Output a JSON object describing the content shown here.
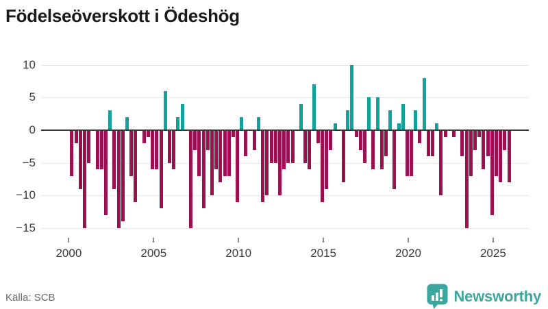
{
  "title": "Födelseöverskott i Ödeshög",
  "footer": {
    "source": "Källa: SCB",
    "brand_name": "Newsworthy"
  },
  "colors": {
    "positive_bar": "#12a19b",
    "negative_bar": "#9c104f",
    "grid": "#e8e8e8",
    "zero_line": "#3a3a3a",
    "axis_text": "#3c3c3c",
    "brand_teal": "#3ba69e"
  },
  "chart_data": {
    "type": "bar",
    "title": "Födelseöverskott i Ödeshög",
    "frequency": "quarterly",
    "xlabel": "",
    "ylabel": "",
    "x_tick_labels": [
      "2000",
      "2005",
      "2010",
      "2015",
      "2020",
      "2025"
    ],
    "y_tick_labels": [
      "10",
      "5",
      "0",
      "−5",
      "−10",
      "−15"
    ],
    "y_ticks": [
      10,
      5,
      0,
      -5,
      -10,
      -15
    ],
    "ylim": [
      -16.5,
      11
    ],
    "grid": true,
    "legend": "none",
    "series": [
      {
        "name": "Födelseöverskott",
        "years": [
          {
            "year": 2000,
            "quarters": [
              -7,
              -2,
              -9,
              -15
            ]
          },
          {
            "year": 2001,
            "quarters": [
              -5,
              0,
              -6,
              -6
            ]
          },
          {
            "year": 2002,
            "quarters": [
              -13,
              3,
              -9,
              -15
            ]
          },
          {
            "year": 2003,
            "quarters": [
              -14,
              2,
              -7,
              -11
            ]
          },
          {
            "year": 2004,
            "quarters": [
              0,
              -2,
              -1,
              -6
            ]
          },
          {
            "year": 2005,
            "quarters": [
              -6,
              -12,
              6,
              -5
            ]
          },
          {
            "year": 2006,
            "quarters": [
              -6,
              2,
              4,
              0
            ]
          },
          {
            "year": 2007,
            "quarters": [
              -15,
              -3,
              -7,
              -12
            ]
          },
          {
            "year": 2008,
            "quarters": [
              -3,
              -10,
              -6,
              -8
            ]
          },
          {
            "year": 2009,
            "quarters": [
              -7,
              -7,
              -1,
              -11
            ]
          },
          {
            "year": 2010,
            "quarters": [
              2,
              -4,
              0,
              -3
            ]
          },
          {
            "year": 2011,
            "quarters": [
              2,
              -11,
              -10,
              -5
            ]
          },
          {
            "year": 2012,
            "quarters": [
              -5,
              -10,
              -6,
              -5
            ]
          },
          {
            "year": 2013,
            "quarters": [
              -5,
              0,
              4,
              -5
            ]
          },
          {
            "year": 2014,
            "quarters": [
              -6,
              7,
              -2,
              -11
            ]
          },
          {
            "year": 2015,
            "quarters": [
              -9,
              -3,
              1,
              0
            ]
          },
          {
            "year": 2016,
            "quarters": [
              -8,
              3,
              10,
              -1
            ]
          },
          {
            "year": 2017,
            "quarters": [
              -3,
              -5,
              5,
              -6
            ]
          },
          {
            "year": 2018,
            "quarters": [
              5,
              -6,
              -4,
              3
            ]
          },
          {
            "year": 2019,
            "quarters": [
              -9,
              1,
              4,
              -7
            ]
          },
          {
            "year": 2020,
            "quarters": [
              -7,
              3,
              -2,
              8
            ]
          },
          {
            "year": 2021,
            "quarters": [
              -4,
              -4,
              1,
              -10
            ]
          },
          {
            "year": 2022,
            "quarters": [
              -1,
              0,
              -1,
              0
            ]
          },
          {
            "year": 2023,
            "quarters": [
              -4,
              -15,
              -7,
              -3
            ]
          },
          {
            "year": 2024,
            "quarters": [
              -1,
              -6,
              -4,
              -13
            ]
          },
          {
            "year": 2025,
            "quarters": [
              -7,
              -8,
              -3,
              -8
            ]
          }
        ]
      }
    ]
  }
}
